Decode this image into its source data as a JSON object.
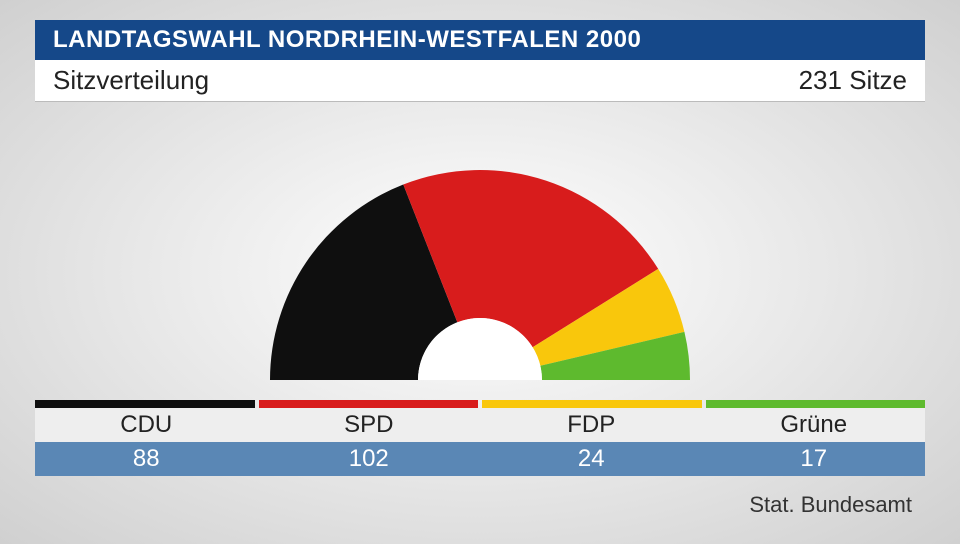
{
  "header": {
    "title": "LANDTAGSWAHL NORDRHEIN-WESTFALEN 2000",
    "title_color": "#ffffff",
    "bar_color": "#154889"
  },
  "subheader": {
    "subtitle": "Sitzverteilung",
    "total_label": "231 Sitze",
    "background": "#ffffff"
  },
  "chart": {
    "type": "semi-donut",
    "total_seats": 231,
    "outer_radius": 210,
    "inner_radius": 62,
    "center_fill": "#ffffff",
    "parties": [
      {
        "name": "CDU",
        "seats": 88,
        "color": "#0f0f0f"
      },
      {
        "name": "SPD",
        "seats": 102,
        "color": "#d81c1c"
      },
      {
        "name": "FDP",
        "seats": 24,
        "color": "#f9c70c"
      },
      {
        "name": "Grüne",
        "seats": 17,
        "color": "#5eba2e"
      }
    ]
  },
  "legend": {
    "label_row_bg": "#eeeeee",
    "value_row_bg": "#5a87b5",
    "value_text_color": "#ffffff",
    "label_text_color": "#222222"
  },
  "source": "Stat. Bundesamt"
}
